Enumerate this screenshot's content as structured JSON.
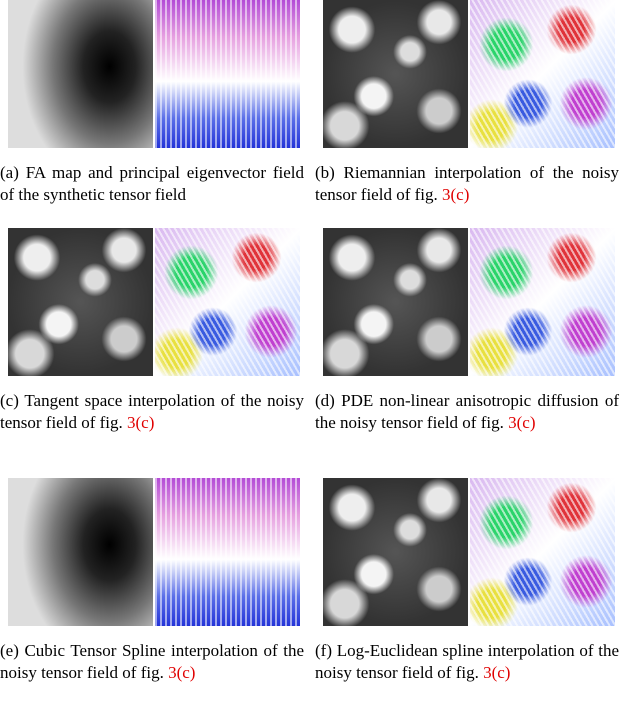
{
  "panels": [
    {
      "label": "(a)",
      "text": "FA map and principal eigenvector field of the synthetic tensor field"
    },
    {
      "label": "(b)",
      "text": "Riemannian interpolation of the noisy tensor field of fig.",
      "ref": "3(c)"
    },
    {
      "label": "(c)",
      "text": "Tangent space interpolation of the noisy tensor field of fig.",
      "ref": "3(c)"
    },
    {
      "label": "(d)",
      "text": "PDE non-linear anisotropic diffusion of the noisy tensor field of fig.",
      "ref": "3(c)"
    },
    {
      "label": "(e)",
      "text": "Cubic Tensor Spline interpolation of the noisy tensor field of fig.",
      "ref": "3(c)"
    },
    {
      "label": "(f)",
      "text": "Log-Euclidean spline interpolation of the noisy tensor field of fig.",
      "ref": "3(c)"
    }
  ]
}
